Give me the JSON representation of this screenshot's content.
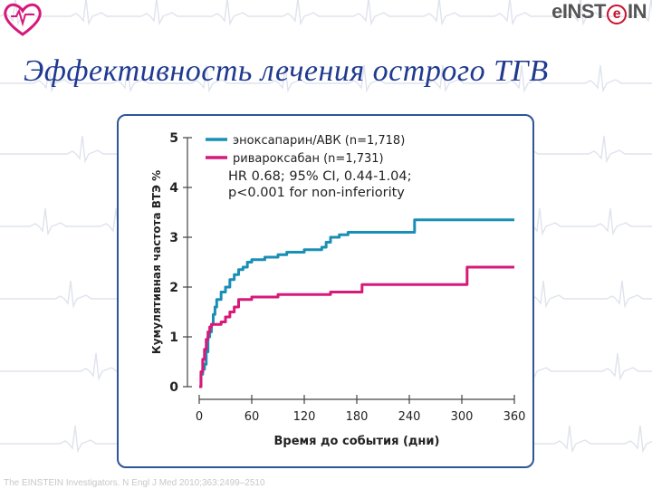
{
  "slide": {
    "title": "Эффективность лечения острого ТГВ",
    "footer": "The EINSTEIN Investigators. N Engl J Med 2010;363:2499–2510"
  },
  "brand": {
    "prefix": "e",
    "letter": "I",
    "middle": "NST",
    "e_letter": "e",
    "suffix": "IN"
  },
  "colors": {
    "enoxaparin": "#1a8fb5",
    "rivaroxaban": "#d6197a",
    "panel_border": "#2e5597",
    "title": "#1f3a8f"
  },
  "chart_data": {
    "type": "line",
    "xlabel": "Время до события (дни)",
    "ylabel": "Кумулятивная частота ВТЭ %",
    "xlim": [
      0,
      360
    ],
    "ylim": [
      0,
      5
    ],
    "x_ticks": [
      0,
      60,
      120,
      180,
      240,
      300,
      360
    ],
    "y_ticks": [
      0,
      1,
      2,
      3,
      4,
      5
    ],
    "grid": false,
    "legend_position": "top-left",
    "annotation": [
      "HR 0.68; 95% CI, 0.44-1.04;",
      "p<0.001 for non-inferiority"
    ],
    "series": [
      {
        "name": "эноксапарин/АВК (n=1,718)",
        "color": "#1a8fb5",
        "points": [
          [
            0,
            0
          ],
          [
            2,
            0.25
          ],
          [
            4,
            0.35
          ],
          [
            6,
            0.45
          ],
          [
            8,
            0.7
          ],
          [
            10,
            1.0
          ],
          [
            12,
            1.1
          ],
          [
            14,
            1.25
          ],
          [
            16,
            1.45
          ],
          [
            18,
            1.6
          ],
          [
            20,
            1.75
          ],
          [
            25,
            1.9
          ],
          [
            30,
            2.0
          ],
          [
            35,
            2.15
          ],
          [
            40,
            2.25
          ],
          [
            45,
            2.35
          ],
          [
            50,
            2.4
          ],
          [
            55,
            2.5
          ],
          [
            60,
            2.55
          ],
          [
            75,
            2.6
          ],
          [
            90,
            2.65
          ],
          [
            100,
            2.7
          ],
          [
            120,
            2.75
          ],
          [
            140,
            2.8
          ],
          [
            145,
            2.9
          ],
          [
            150,
            3.0
          ],
          [
            160,
            3.05
          ],
          [
            170,
            3.1
          ],
          [
            180,
            3.1
          ],
          [
            210,
            3.1
          ],
          [
            240,
            3.1
          ],
          [
            246,
            3.35
          ],
          [
            300,
            3.35
          ],
          [
            360,
            3.35
          ]
        ]
      },
      {
        "name": "ривароксабан (n=1,731)",
        "color": "#d6197a",
        "points": [
          [
            0,
            0
          ],
          [
            2,
            0.3
          ],
          [
            4,
            0.55
          ],
          [
            6,
            0.75
          ],
          [
            8,
            0.95
          ],
          [
            10,
            1.1
          ],
          [
            12,
            1.2
          ],
          [
            14,
            1.25
          ],
          [
            20,
            1.25
          ],
          [
            25,
            1.3
          ],
          [
            30,
            1.4
          ],
          [
            35,
            1.5
          ],
          [
            40,
            1.6
          ],
          [
            45,
            1.75
          ],
          [
            60,
            1.8
          ],
          [
            90,
            1.85
          ],
          [
            120,
            1.85
          ],
          [
            150,
            1.9
          ],
          [
            180,
            1.9
          ],
          [
            186,
            2.05
          ],
          [
            240,
            2.05
          ],
          [
            300,
            2.05
          ],
          [
            306,
            2.4
          ],
          [
            360,
            2.4
          ]
        ]
      }
    ]
  }
}
